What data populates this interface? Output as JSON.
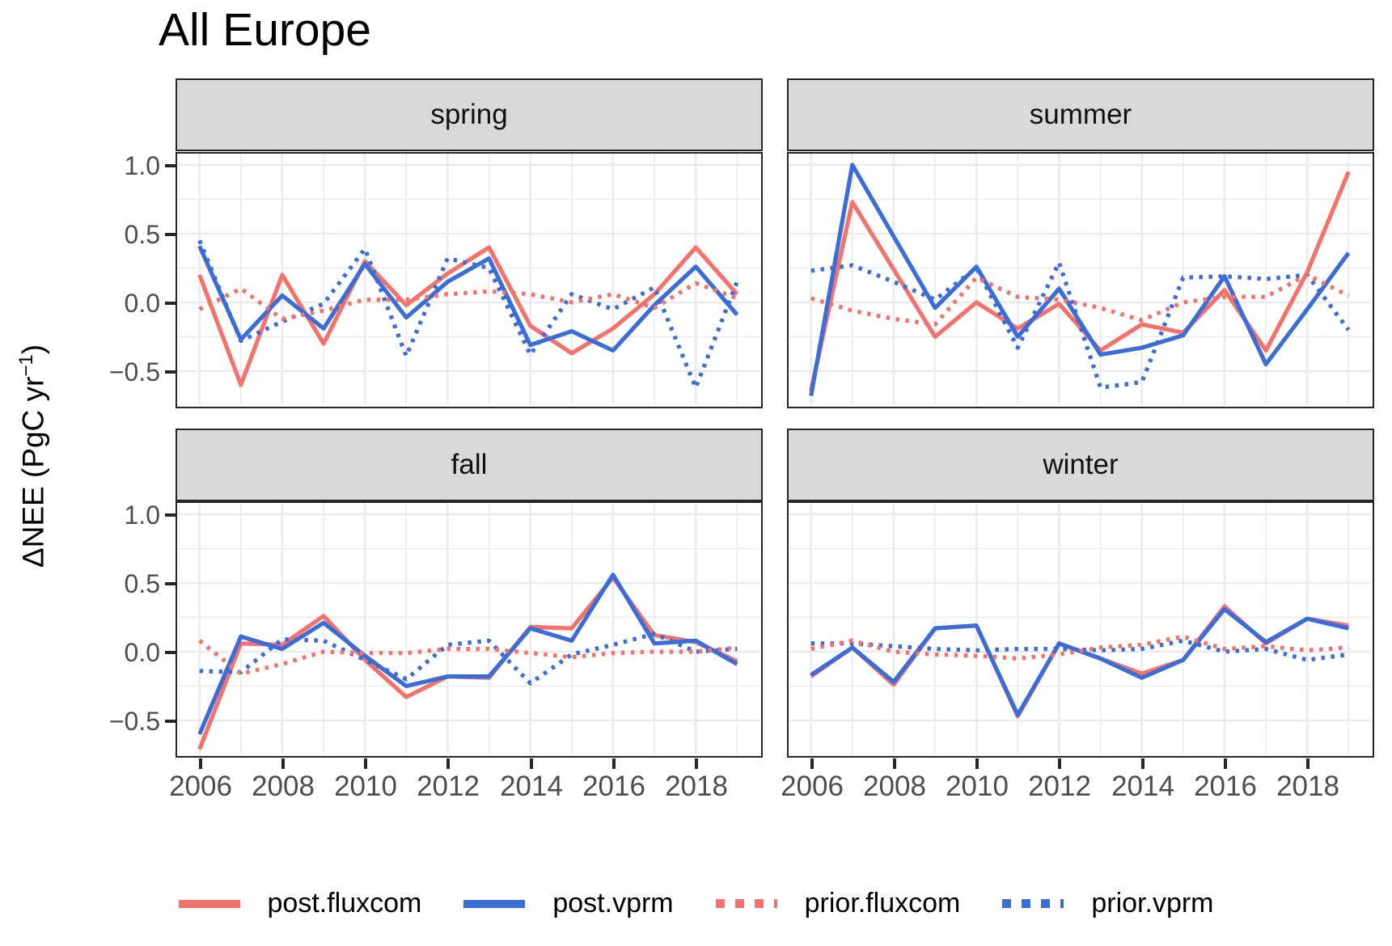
{
  "title": "All Europe",
  "colors": {
    "red": "#F4716C",
    "blue": "#3A6DD8",
    "strip_bg": "#D9D9D9",
    "grid": "#EBEBEB",
    "axis_text": "#4D4D4D",
    "panel_border": "#262626"
  },
  "axes": {
    "ylabel_prefix": "ΔNEE (PgC yr",
    "ylabel_sup": "−1",
    "ylabel_suffix": ")",
    "y_tick_labels": [
      "1.0",
      "0.5",
      "0.0",
      "−0.5"
    ],
    "y_tick_values": [
      1.0,
      0.5,
      0.0,
      -0.5
    ],
    "x_tick_labels": [
      "2006",
      "2008",
      "2010",
      "2012",
      "2014",
      "2016",
      "2018"
    ],
    "x_tick_values": [
      2006,
      2008,
      2010,
      2012,
      2014,
      2016,
      2018
    ]
  },
  "legend": {
    "items": [
      {
        "label": "post.fluxcom",
        "style": "solid",
        "color": "#F4716C"
      },
      {
        "label": "post.vprm",
        "style": "solid",
        "color": "#3A6DD8"
      },
      {
        "label": "prior.fluxcom",
        "style": "dotted",
        "color": "#F4716C"
      },
      {
        "label": "prior.vprm",
        "style": "dotted",
        "color": "#3A6DD8"
      }
    ]
  },
  "chart_data": {
    "type": "line",
    "title": "All Europe",
    "ylabel": "ΔNEE (PgC yr⁻¹)",
    "x": [
      2006,
      2007,
      2008,
      2009,
      2010,
      2011,
      2012,
      2013,
      2014,
      2015,
      2016,
      2017,
      2018,
      2019
    ],
    "xlim": [
      2005.4,
      2019.6
    ],
    "ylim": [
      -0.765,
      1.1
    ],
    "grid": true,
    "legend_position": "bottom",
    "facets": [
      {
        "name": "spring",
        "series": [
          {
            "name": "post.fluxcom",
            "style": "solid",
            "color": "#F4716C",
            "values": [
              0.2,
              -0.6,
              0.2,
              -0.3,
              0.3,
              -0.02,
              0.21,
              0.4,
              -0.17,
              -0.37,
              -0.19,
              0.06,
              0.4,
              0.06
            ]
          },
          {
            "name": "post.vprm",
            "style": "solid",
            "color": "#3A6DD8",
            "values": [
              0.41,
              -0.27,
              0.05,
              -0.19,
              0.28,
              -0.11,
              0.15,
              0.32,
              -0.31,
              -0.21,
              -0.35,
              -0.02,
              0.26,
              -0.09
            ]
          },
          {
            "name": "prior.fluxcom",
            "style": "dotted",
            "color": "#F4716C",
            "values": [
              -0.05,
              0.1,
              -0.12,
              -0.06,
              0.02,
              0.02,
              0.06,
              0.08,
              0.06,
              0.0,
              0.06,
              -0.04,
              0.14,
              0.03
            ]
          },
          {
            "name": "prior.vprm",
            "style": "dotted",
            "color": "#3A6DD8",
            "values": [
              0.45,
              -0.28,
              -0.14,
              -0.01,
              0.39,
              -0.39,
              0.32,
              0.25,
              -0.38,
              0.06,
              -0.05,
              0.11,
              -0.62,
              0.15
            ]
          }
        ]
      },
      {
        "name": "summer",
        "series": [
          {
            "name": "post.fluxcom",
            "style": "solid",
            "color": "#F4716C",
            "values": [
              -0.64,
              0.73,
              0.24,
              -0.25,
              0.0,
              -0.19,
              -0.01,
              -0.35,
              -0.16,
              -0.22,
              0.09,
              -0.35,
              0.22,
              0.95
            ]
          },
          {
            "name": "post.vprm",
            "style": "solid",
            "color": "#3A6DD8",
            "values": [
              -0.68,
              1.0,
              0.48,
              -0.04,
              0.26,
              -0.25,
              0.1,
              -0.38,
              -0.33,
              -0.24,
              0.19,
              -0.45,
              -0.05,
              0.36
            ]
          },
          {
            "name": "prior.fluxcom",
            "style": "dotted",
            "color": "#F4716C",
            "values": [
              0.03,
              -0.06,
              -0.12,
              -0.16,
              0.18,
              0.04,
              0.02,
              -0.04,
              -0.13,
              0.0,
              0.04,
              0.04,
              0.2,
              0.05
            ]
          },
          {
            "name": "prior.vprm",
            "style": "dotted",
            "color": "#3A6DD8",
            "values": [
              0.23,
              0.27,
              0.15,
              0.02,
              0.25,
              -0.33,
              0.29,
              -0.62,
              -0.58,
              0.18,
              0.19,
              0.17,
              0.2,
              -0.2
            ]
          }
        ]
      },
      {
        "name": "fall",
        "series": [
          {
            "name": "post.fluxcom",
            "style": "solid",
            "color": "#F4716C",
            "values": [
              -0.71,
              0.06,
              0.05,
              0.26,
              -0.06,
              -0.33,
              -0.18,
              -0.19,
              0.18,
              0.17,
              0.54,
              0.12,
              0.07,
              -0.07
            ]
          },
          {
            "name": "post.vprm",
            "style": "solid",
            "color": "#3A6DD8",
            "values": [
              -0.6,
              0.11,
              0.02,
              0.21,
              -0.03,
              -0.25,
              -0.18,
              -0.18,
              0.17,
              0.08,
              0.56,
              0.06,
              0.08,
              -0.09
            ]
          },
          {
            "name": "prior.fluxcom",
            "style": "dotted",
            "color": "#F4716C",
            "values": [
              0.08,
              -0.16,
              -0.09,
              0.0,
              -0.01,
              -0.01,
              0.02,
              0.02,
              -0.01,
              -0.04,
              -0.01,
              0.0,
              0.0,
              0.03
            ]
          },
          {
            "name": "prior.vprm",
            "style": "dotted",
            "color": "#3A6DD8",
            "values": [
              -0.14,
              -0.15,
              0.09,
              0.08,
              -0.06,
              -0.2,
              0.05,
              0.08,
              -0.23,
              -0.02,
              0.05,
              0.13,
              0.0,
              0.02
            ]
          }
        ]
      },
      {
        "name": "winter",
        "series": [
          {
            "name": "post.fluxcom",
            "style": "solid",
            "color": "#F4716C",
            "values": [
              -0.18,
              0.03,
              -0.24,
              0.17,
              0.19,
              -0.47,
              0.06,
              -0.05,
              -0.16,
              -0.06,
              0.33,
              0.06,
              0.24,
              0.19
            ]
          },
          {
            "name": "post.vprm",
            "style": "solid",
            "color": "#3A6DD8",
            "values": [
              -0.17,
              0.03,
              -0.22,
              0.17,
              0.19,
              -0.46,
              0.06,
              -0.05,
              -0.19,
              -0.06,
              0.31,
              0.07,
              0.24,
              0.17
            ]
          },
          {
            "name": "prior.fluxcom",
            "style": "dotted",
            "color": "#F4716C",
            "values": [
              0.02,
              0.08,
              0.0,
              -0.02,
              -0.03,
              -0.05,
              -0.02,
              0.03,
              0.05,
              0.11,
              0.02,
              0.04,
              0.01,
              0.03
            ]
          },
          {
            "name": "prior.vprm",
            "style": "dotted",
            "color": "#3A6DD8",
            "values": [
              0.06,
              0.06,
              0.04,
              0.02,
              0.01,
              0.02,
              0.02,
              0.01,
              0.02,
              0.08,
              0.0,
              0.02,
              -0.06,
              -0.02
            ]
          }
        ]
      }
    ]
  }
}
